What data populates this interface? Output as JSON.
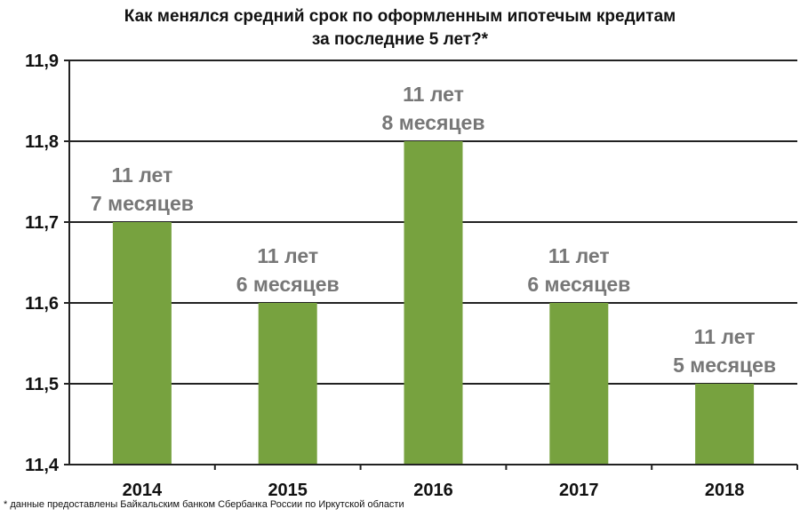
{
  "title_line1": "Как менялся средний срок по оформленным ипотечым кредитам",
  "title_line2": "за последние 5 лет?*",
  "footnote": "* данные  предоставлены Байкальским банком Сбербанка России по Иркутской области",
  "chart_data": {
    "type": "bar",
    "categories": [
      "2014",
      "2015",
      "2016",
      "2017",
      "2018"
    ],
    "values": [
      11.7,
      11.6,
      11.8,
      11.6,
      11.5
    ],
    "data_labels": [
      [
        "11 лет",
        "7 месяцев"
      ],
      [
        "11 лет",
        "6 месяцев"
      ],
      [
        "11 лет",
        "8 месяцев"
      ],
      [
        "11 лет",
        "6 месяцев"
      ],
      [
        "11 лет",
        "5 месяцев"
      ]
    ],
    "ylim": [
      11.4,
      11.9
    ],
    "yticks": [
      "11,4",
      "11,5",
      "11,6",
      "11,7",
      "11,8",
      "11,9"
    ],
    "xlabel": "",
    "ylabel": "",
    "grid": true,
    "legend": "none",
    "colors": {
      "bar": "#77a23f",
      "label": "#777777",
      "grid": "#222222"
    }
  }
}
